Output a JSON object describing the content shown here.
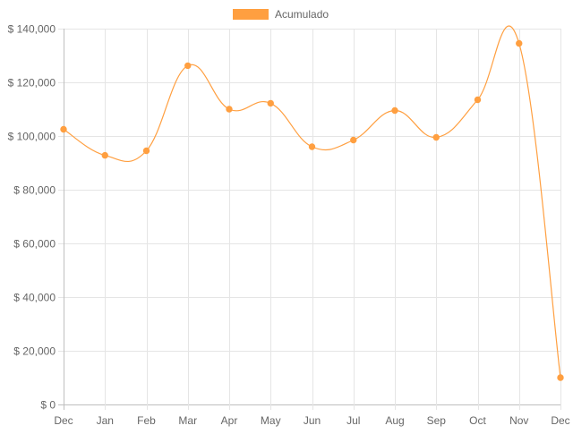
{
  "chart_data": {
    "type": "line",
    "title": "",
    "xlabel": "",
    "ylabel": "",
    "categories": [
      "Dec",
      "Jan",
      "Feb",
      "Mar",
      "Apr",
      "May",
      "Jun",
      "Jul",
      "Aug",
      "Sep",
      "Oct",
      "Nov",
      "Dec"
    ],
    "series": [
      {
        "name": "Acumulado",
        "color": "#ff9f40",
        "values": [
          102500,
          92800,
          94500,
          126200,
          110000,
          112200,
          96000,
          98500,
          109500,
          99500,
          113500,
          134500,
          10000
        ]
      }
    ],
    "ylim": [
      0,
      140000
    ],
    "yticks": [
      0,
      20000,
      40000,
      60000,
      80000,
      100000,
      120000,
      140000
    ],
    "ytick_labels": [
      "$ 0",
      "$ 20,000",
      "$ 40,000",
      "$ 60,000",
      "$ 80,000",
      "$ 100,000",
      "$ 120,000",
      "$ 140,000"
    ],
    "grid": true,
    "legend_position": "top-center",
    "smooth": true
  }
}
